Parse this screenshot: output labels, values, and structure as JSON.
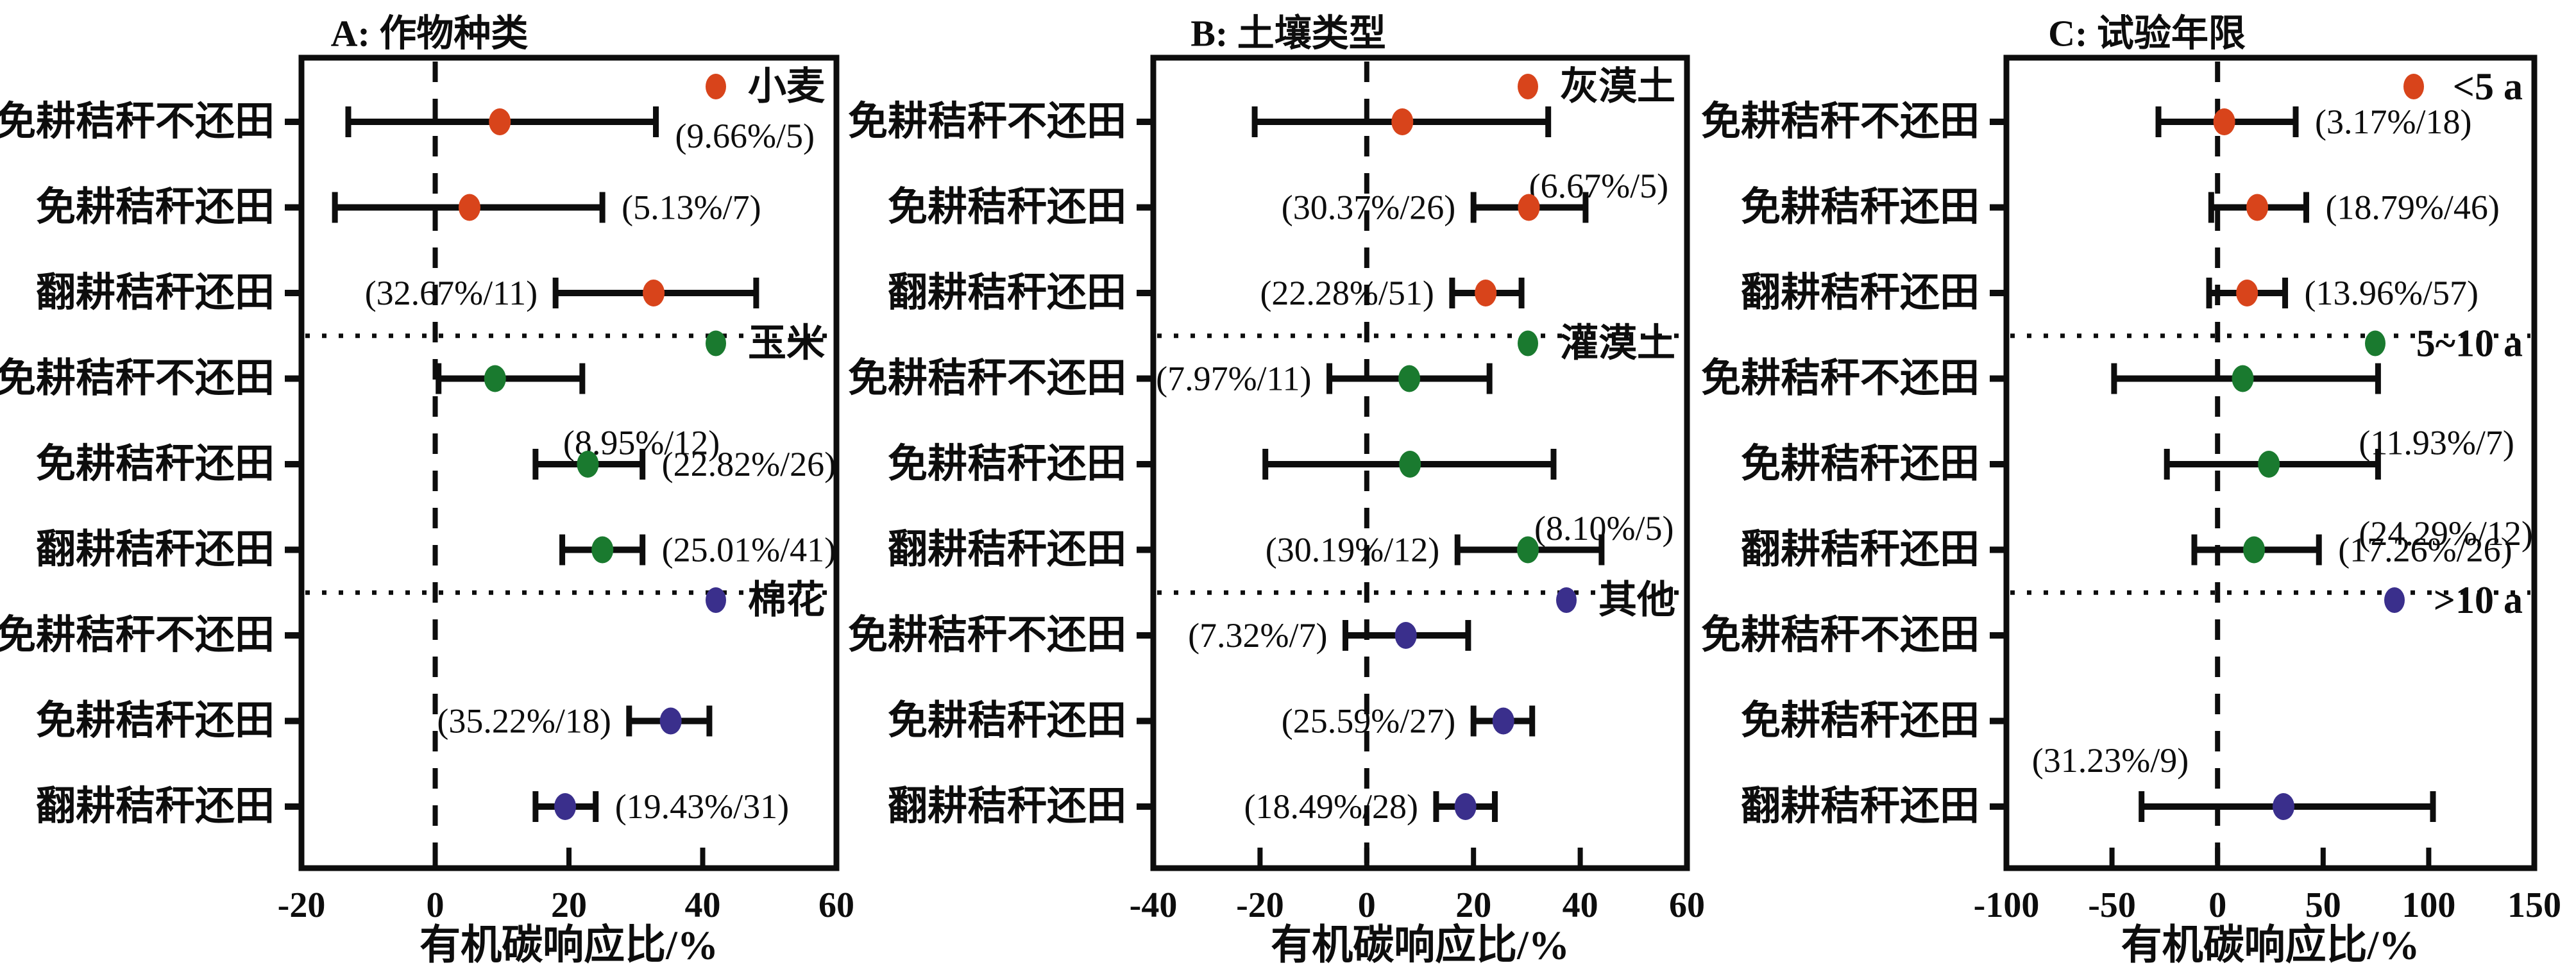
{
  "figure": {
    "background": "#ffffff",
    "ink_color": "#0d0d0d",
    "x_axis_title": "有机碳响应比/%",
    "treatment_labels": [
      "免耕秸秆不还田",
      "免耕秸秆还田",
      "翻耕秸秆还田"
    ]
  },
  "chart_data": {
    "type": "scatter",
    "subtype": "forest-plot-with-error-bars",
    "xlabel": "有机碳响应比/%",
    "row_categories": [
      "免耕秸秆不还田",
      "免耕秸秆还田",
      "翻耕秸秆还田"
    ],
    "grid": "off",
    "legend_position": "inside-top-right-of-each-group",
    "panels": [
      {
        "id": "A",
        "title": "A: 作物种类",
        "xlim": [
          -20,
          60
        ],
        "xticks": [
          -20,
          0,
          20,
          40,
          60
        ],
        "zero_line": 0,
        "groups": [
          {
            "name": "小麦",
            "color": "#D8441B",
            "rows": [
              {
                "treatment": "免耕秸秆不还田",
                "mean": 9.66,
                "ci": [
                  -13,
                  33
                ],
                "n": 5,
                "label": "(9.66%/5)",
                "label_pos": "right",
                "label_dy": 22
              },
              {
                "treatment": "免耕秸秆还田",
                "mean": 5.13,
                "ci": [
                  -15,
                  25
                ],
                "n": 7,
                "label": "(5.13%/7)",
                "label_pos": "right"
              },
              {
                "treatment": "翻耕秸秆还田",
                "mean": 32.67,
                "ci": [
                  18,
                  48
                ],
                "n": 11,
                "label": "(32.67%/11)",
                "label_pos": "left"
              }
            ]
          },
          {
            "name": "玉米",
            "color": "#1A7A2F",
            "rows": [
              {
                "treatment": "免耕秸秆不还田",
                "mean": 8.95,
                "ci": [
                  0.5,
                  22
                ],
                "n": 12,
                "label": "(8.95%/12)",
                "label_pos": "below-right"
              },
              {
                "treatment": "免耕秸秆还田",
                "mean": 22.82,
                "ci": [
                  15,
                  31
                ],
                "n": 26,
                "label": "(22.82%/26)",
                "label_pos": "right"
              },
              {
                "treatment": "翻耕秸秆还田",
                "mean": 25.01,
                "ci": [
                  19,
                  31
                ],
                "n": 41,
                "label": "(25.01%/41)",
                "label_pos": "right"
              }
            ]
          },
          {
            "name": "棉花",
            "color": "#3A2F8C",
            "rows": [
              null,
              {
                "treatment": "免耕秸秆还田",
                "mean": 35.22,
                "ci": [
                  29,
                  41
                ],
                "n": 18,
                "label": "(35.22%/18)",
                "label_pos": "left"
              },
              {
                "treatment": "翻耕秸秆还田",
                "mean": 19.43,
                "ci": [
                  15,
                  24
                ],
                "n": 31,
                "label": "(19.43%/31)",
                "label_pos": "right"
              }
            ]
          }
        ]
      },
      {
        "id": "B",
        "title": "B: 土壤类型",
        "xlim": [
          -40,
          60
        ],
        "xticks": [
          -40,
          -20,
          0,
          20,
          40,
          60
        ],
        "zero_line": 0,
        "groups": [
          {
            "name": "灰漠土",
            "color": "#D8441B",
            "rows": [
              {
                "treatment": "免耕秸秆不还田",
                "mean": 6.67,
                "ci": [
                  -21,
                  34
                ],
                "n": 5,
                "label": "(6.67%/5)",
                "label_pos": "below-right"
              },
              {
                "treatment": "免耕秸秆还田",
                "mean": 30.37,
                "ci": [
                  20,
                  41
                ],
                "n": 26,
                "label": "(30.37%/26)",
                "label_pos": "left"
              },
              {
                "treatment": "翻耕秸秆还田",
                "mean": 22.28,
                "ci": [
                  16,
                  29
                ],
                "n": 51,
                "label": "(22.28%/51)",
                "label_pos": "left"
              }
            ]
          },
          {
            "name": "灌漠土",
            "color": "#1A7A2F",
            "rows": [
              {
                "treatment": "免耕秸秆不还田",
                "mean": 7.97,
                "ci": [
                  -7,
                  23
                ],
                "n": 11,
                "label": "(7.97%/11)",
                "label_pos": "left"
              },
              {
                "treatment": "免耕秸秆还田",
                "mean": 8.1,
                "ci": [
                  -19,
                  35
                ],
                "n": 5,
                "label": "(8.10%/5)",
                "label_pos": "below-right"
              },
              {
                "treatment": "翻耕秸秆还田",
                "mean": 30.19,
                "ci": [
                  17,
                  44
                ],
                "n": 12,
                "label": "(30.19%/12)",
                "label_pos": "left"
              }
            ]
          },
          {
            "name": "其他",
            "color": "#3A2F8C",
            "rows": [
              {
                "treatment": "免耕秸秆不还田",
                "mean": 7.32,
                "ci": [
                  -4,
                  19
                ],
                "n": 7,
                "label": "(7.32%/7)",
                "label_pos": "left"
              },
              {
                "treatment": "免耕秸秆还田",
                "mean": 25.59,
                "ci": [
                  20,
                  31
                ],
                "n": 27,
                "label": "(25.59%/27)",
                "label_pos": "left"
              },
              {
                "treatment": "翻耕秸秆还田",
                "mean": 18.49,
                "ci": [
                  13,
                  24
                ],
                "n": 28,
                "label": "(18.49%/28)",
                "label_pos": "left"
              }
            ]
          }
        ]
      },
      {
        "id": "C",
        "title": "C: 试验年限",
        "xlim": [
          -100,
          150
        ],
        "xticks": [
          -100,
          -50,
          0,
          50,
          100,
          150
        ],
        "zero_line": 0,
        "groups": [
          {
            "name": "<5 a",
            "color": "#D8441B",
            "rows": [
              {
                "treatment": "免耕秸秆不还田",
                "mean": 3.17,
                "ci": [
                  -28,
                  37
                ],
                "n": 18,
                "label": "(3.17%/18)",
                "label_pos": "right"
              },
              {
                "treatment": "免耕秸秆还田",
                "mean": 18.79,
                "ci": [
                  -3,
                  42
                ],
                "n": 46,
                "label": "(18.79%/46)",
                "label_pos": "right"
              },
              {
                "treatment": "翻耕秸秆还田",
                "mean": 13.96,
                "ci": [
                  -4,
                  32
                ],
                "n": 57,
                "label": "(13.96%/57)",
                "label_pos": "right"
              }
            ]
          },
          {
            "name": "5~10 a",
            "color": "#1A7A2F",
            "rows": [
              {
                "treatment": "免耕秸秆不还田",
                "mean": 11.93,
                "ci": [
                  -49,
                  76
                ],
                "n": 7,
                "label": "(11.93%/7)",
                "label_pos": "below-right"
              },
              {
                "treatment": "免耕秸秆还田",
                "mean": 24.29,
                "ci": [
                  -24,
                  76
                ],
                "n": 12,
                "label": "(24.29%/12)",
                "label_pos": "below-right",
                "label_dy": 108
              },
              {
                "treatment": "翻耕秸秆还田",
                "mean": 17.26,
                "ci": [
                  -11,
                  48
                ],
                "n": 26,
                "label": "(17.26%/26)",
                "label_pos": "right"
              }
            ]
          },
          {
            "name": ">10 a",
            "color": "#3A2F8C",
            "rows": [
              null,
              null,
              {
                "treatment": "翻耕秸秆还田",
                "mean": 31.23,
                "ci": [
                  -36,
                  102
                ],
                "n": 9,
                "label": "(31.23%/9)",
                "label_pos": "left-above"
              }
            ]
          }
        ]
      }
    ]
  }
}
